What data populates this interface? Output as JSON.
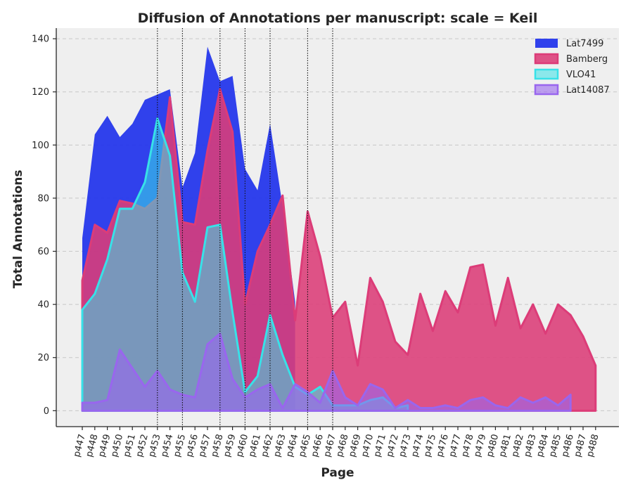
{
  "chart_data": {
    "type": "area",
    "title": "Diffusion of Annotations per manuscript: scale = Keil",
    "xlabel": "Page",
    "ylabel": "Total Annotations",
    "ylim": [
      -6,
      144
    ],
    "yticks": [
      0,
      20,
      40,
      60,
      80,
      100,
      120,
      140
    ],
    "grid": "y-dashed",
    "legend_position": "top-right",
    "categories": [
      "p447",
      "p448",
      "p449",
      "p450",
      "p451",
      "p452",
      "p453",
      "p454",
      "p455",
      "p456",
      "p457",
      "p458",
      "p459",
      "p460",
      "p461",
      "p462",
      "p463",
      "p464",
      "p465",
      "p466",
      "p467",
      "p468",
      "p469",
      "p470",
      "p471",
      "p472",
      "p473",
      "p474",
      "p475",
      "p476",
      "p477",
      "p478",
      "p479",
      "p480",
      "p481",
      "p482",
      "p483",
      "p484",
      "p485",
      "p486",
      "p487",
      "p488"
    ],
    "vlines": [
      "p453",
      "p455",
      "p458",
      "p460",
      "p462",
      "p465",
      "p467"
    ],
    "series": [
      {
        "name": "Lat7499",
        "color": "#1f32ec",
        "opacity": 0.92,
        "stroke": false,
        "values": [
          65,
          104,
          111,
          103,
          108,
          117,
          119,
          121,
          84,
          97,
          137,
          124,
          126,
          91,
          83,
          108,
          77,
          41,
          null,
          null,
          null,
          null,
          null,
          null,
          null,
          null,
          null,
          null,
          null,
          null,
          null,
          null,
          null,
          null,
          null,
          null,
          null,
          null,
          null,
          null,
          null,
          null
        ]
      },
      {
        "name": "Bamberg",
        "color": "#dc3c78",
        "opacity": 0.88,
        "stroke": true,
        "values": [
          49,
          70,
          67,
          79,
          78,
          76,
          80,
          118,
          71,
          70,
          98,
          121,
          105,
          40,
          60,
          70,
          81,
          34,
          75,
          58,
          35,
          41,
          17,
          50,
          41,
          26,
          21,
          44,
          30,
          45,
          37,
          54,
          55,
          32,
          50,
          31,
          40,
          29,
          40,
          36,
          28,
          17
        ]
      },
      {
        "name": "VLO41",
        "color": "#38e1e8",
        "opacity": 0.55,
        "stroke": true,
        "values": [
          38,
          44,
          57,
          76,
          76,
          86,
          110,
          96,
          52,
          41,
          69,
          70,
          37,
          7,
          13,
          36,
          21,
          9,
          6,
          9,
          2,
          2,
          2,
          4,
          5,
          1,
          2,
          null,
          null,
          null,
          null,
          null,
          null,
          null,
          null,
          null,
          null,
          null,
          null,
          null,
          null,
          null
        ]
      },
      {
        "name": "Lat14087",
        "color": "#9966ee",
        "opacity": 0.6,
        "stroke": true,
        "values": [
          3,
          3,
          4,
          23,
          16,
          9,
          15,
          8,
          6,
          5,
          25,
          29,
          12,
          5,
          8,
          10,
          1,
          10,
          7,
          3,
          15,
          5,
          2,
          10,
          8,
          1,
          4,
          1,
          1,
          2,
          1,
          4,
          5,
          2,
          1,
          5,
          3,
          5,
          2,
          6,
          null,
          null
        ]
      }
    ]
  }
}
